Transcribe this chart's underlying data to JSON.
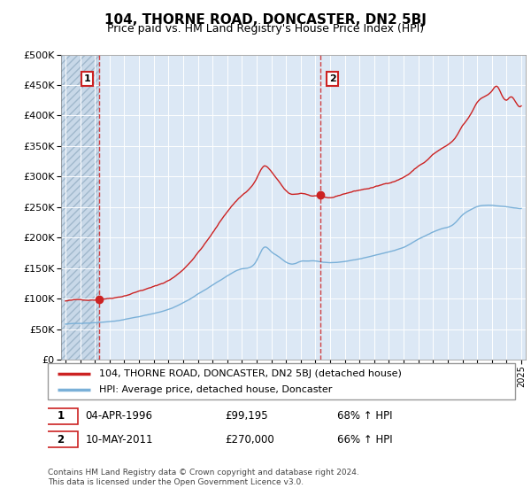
{
  "title": "104, THORNE ROAD, DONCASTER, DN2 5BJ",
  "subtitle": "Price paid vs. HM Land Registry's House Price Index (HPI)",
  "legend_line1": "104, THORNE ROAD, DONCASTER, DN2 5BJ (detached house)",
  "legend_line2": "HPI: Average price, detached house, Doncaster",
  "point1_label": "1",
  "point1_date": "04-APR-1996",
  "point1_price": "£99,195",
  "point1_hpi": "68% ↑ HPI",
  "point1_year": 1996.27,
  "point1_value": 99195,
  "point2_label": "2",
  "point2_date": "10-MAY-2011",
  "point2_price": "£270,000",
  "point2_hpi": "66% ↑ HPI",
  "point2_year": 2011.36,
  "point2_value": 270000,
  "footer1": "Contains HM Land Registry data © Crown copyright and database right 2024.",
  "footer2": "This data is licensed under the Open Government Licence v3.0.",
  "red_line_color": "#cc2222",
  "blue_line_color": "#7ab0d8",
  "background_plot": "#dce8f5",
  "hatch_color": "#c8d8e8",
  "grid_color": "#ffffff",
  "ylim": [
    0,
    500000
  ],
  "yticks": [
    0,
    50000,
    100000,
    150000,
    200000,
    250000,
    300000,
    350000,
    400000,
    450000,
    500000
  ],
  "xmin": 1993.7,
  "xmax": 2025.3
}
